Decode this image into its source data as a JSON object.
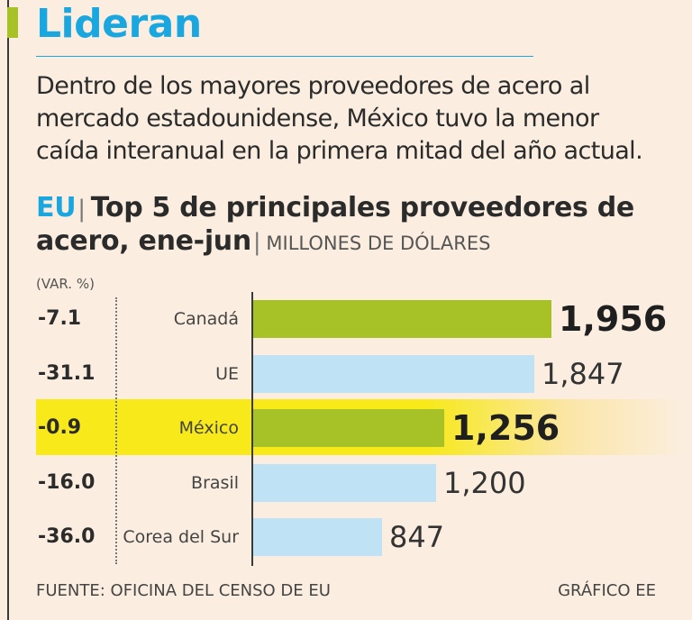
{
  "header": {
    "title": "Lideran",
    "subtitle": "Dentro de los mayores proveedores de acero al mercado estadounidense, México tuvo la menor caída interanual en la primera mitad del año actual."
  },
  "chart_heading": {
    "region": "EU",
    "divider": "|",
    "title": "Top 5 de principales proveedores de acero, ene-jun",
    "units_divider": "|",
    "units": "MILLONES DE DÓLARES"
  },
  "var_label": "(VAR. %)",
  "footer": {
    "source": "FUENTE: OFICINA DEL CENSO DE EU",
    "credit": "GRÁFICO EE"
  },
  "colors": {
    "green": "#a7c226",
    "light_blue": "#bfe3f5",
    "title_blue": "#1aa7e0",
    "highlight": "#f7e91a",
    "background": "#fbeee0"
  },
  "chart_data": {
    "type": "bar",
    "orientation": "horizontal",
    "title": "Top 5 de principales proveedores de acero, ene-jun",
    "units": "MILLONES DE DÓLARES",
    "categories": [
      "Canadá",
      "UE",
      "México",
      "Brasil",
      "Corea del Sur"
    ],
    "values": [
      1956,
      1847,
      1256,
      1200,
      847
    ],
    "value_labels": [
      "1,956",
      "1,847",
      "1,256",
      "1,200",
      "847"
    ],
    "variation_pct": [
      "-7.1",
      "-31.1",
      "-0.9",
      "-16.0",
      "-36.0"
    ],
    "emphasis": [
      true,
      false,
      true,
      false,
      false
    ],
    "highlight_row": "México",
    "xlim": [
      0,
      2000
    ]
  }
}
